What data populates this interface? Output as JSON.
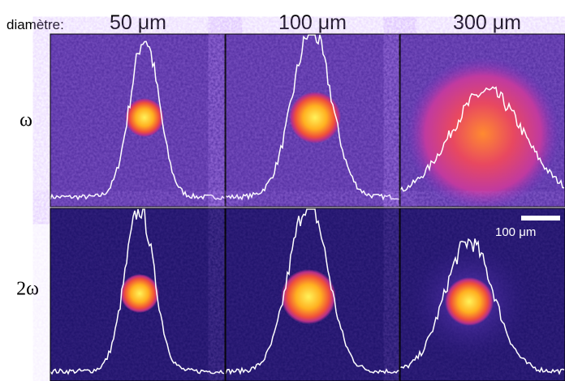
{
  "header": {
    "label": "diamètre:",
    "columns": [
      "50 μm",
      "100 μm",
      "300 μm"
    ]
  },
  "rows": [
    "ω",
    "2ω"
  ],
  "scale_bar": "100 μm"
}
